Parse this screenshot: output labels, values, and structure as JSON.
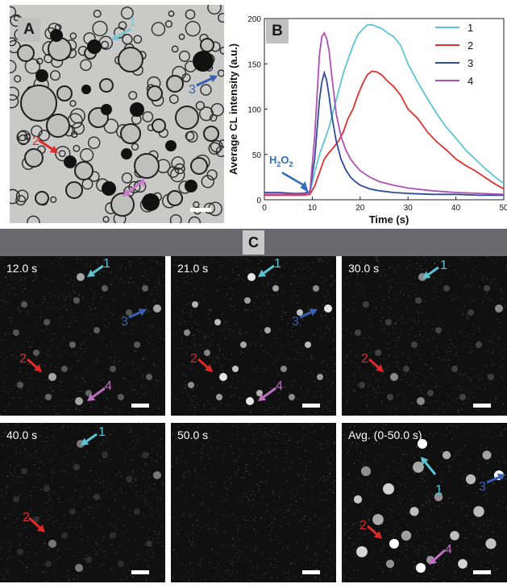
{
  "panels": {
    "a_label": "A",
    "b_label": "B",
    "c_label": "C"
  },
  "panel_a": {
    "arrows": [
      {
        "label": "1",
        "color": "#7dc6d6"
      },
      {
        "label": "2",
        "color": "#e02a2a"
      },
      {
        "label": "3",
        "color": "#3a5fb0"
      },
      {
        "label": "4",
        "color": "#c878c8"
      }
    ]
  },
  "chart_data": {
    "type": "line",
    "xlabel": "Time (s)",
    "ylabel": "Average CL intensity (a.u.)",
    "xlim": [
      0,
      50
    ],
    "ylim": [
      0,
      200
    ],
    "xticks": [
      0,
      10,
      20,
      30,
      40,
      50
    ],
    "yticks": [
      0,
      50,
      100,
      150,
      200
    ],
    "annotation": {
      "text_base": "H",
      "text_sub": "2",
      "text_mid": "O",
      "text_sub2": "2",
      "x": 9.2,
      "y": 8,
      "color": "#2f6eb5"
    },
    "legend_position": "top-right",
    "series": [
      {
        "name": "1",
        "color": "#5cc4d4",
        "x": [
          0,
          3,
          6,
          8,
          9.5,
          10.5,
          11.5,
          12.5,
          13.5,
          14.5,
          15.5,
          16.5,
          17.5,
          18.5,
          19.5,
          20.5,
          21.5,
          22.5,
          23.5,
          24.5,
          25.5,
          27,
          28.5,
          30,
          32,
          34,
          36,
          38,
          40,
          42,
          44,
          46,
          48,
          50
        ],
        "y": [
          6,
          6,
          6,
          6,
          7,
          30,
          50,
          65,
          80,
          100,
          120,
          140,
          155,
          170,
          182,
          188,
          193,
          193,
          191,
          189,
          185,
          180,
          170,
          150,
          130,
          112,
          95,
          80,
          68,
          55,
          45,
          35,
          26,
          18
        ]
      },
      {
        "name": "2",
        "color": "#e03030",
        "x": [
          0,
          3,
          6,
          8,
          9.5,
          10.5,
          11.5,
          12.5,
          13.5,
          14.5,
          15.5,
          16.5,
          17.5,
          18.5,
          19.5,
          20.5,
          21.5,
          22.5,
          23.5,
          24.5,
          25.5,
          27,
          28.5,
          30,
          32,
          34,
          36,
          38,
          40,
          42,
          44,
          46,
          48,
          50
        ],
        "y": [
          5,
          5,
          5,
          5,
          6,
          15,
          30,
          45,
          52,
          58,
          65,
          75,
          90,
          100,
          115,
          128,
          138,
          142,
          141,
          138,
          132,
          125,
          115,
          100,
          90,
          75,
          64,
          55,
          45,
          38,
          32,
          25,
          18,
          12
        ]
      },
      {
        "name": "3",
        "color": "#2e4c9a",
        "x": [
          0,
          3,
          6,
          8,
          9.5,
          10.5,
          11.5,
          12,
          12.5,
          13,
          13.5,
          14,
          15,
          16,
          17,
          18,
          19,
          20,
          22,
          24,
          27,
          30,
          35,
          40,
          45,
          50
        ],
        "y": [
          8,
          8,
          7,
          7,
          9,
          45,
          110,
          130,
          140,
          132,
          115,
          95,
          65,
          45,
          33,
          25,
          20,
          16,
          12,
          10,
          8,
          7,
          6,
          6,
          5,
          5
        ]
      },
      {
        "name": "4",
        "color": "#b050b0",
        "x": [
          0,
          3,
          6,
          8,
          9.5,
          10.5,
          11.5,
          12,
          12.5,
          13,
          13.5,
          14,
          15,
          16,
          17,
          18,
          19,
          20,
          22,
          24,
          27,
          30,
          35,
          40,
          45,
          50
        ],
        "y": [
          6,
          6,
          6,
          6,
          8,
          70,
          160,
          180,
          184,
          178,
          165,
          140,
          95,
          70,
          55,
          45,
          38,
          32,
          25,
          20,
          16,
          13,
          10,
          8,
          7,
          6
        ]
      }
    ]
  },
  "frames": [
    {
      "time": "12.0 s"
    },
    {
      "time": "21.0 s"
    },
    {
      "time": "30.0 s"
    },
    {
      "time": "40.0 s"
    },
    {
      "time": "50.0 s"
    },
    {
      "time": "Avg. (0-50.0 s)"
    }
  ],
  "frame_arrows": {
    "one": {
      "label": "1",
      "color": "#5cc4d4"
    },
    "two": {
      "label": "2",
      "color": "#e02a2a"
    },
    "three": {
      "label": "3",
      "color": "#3a5fb0"
    },
    "four": {
      "label": "4",
      "color": "#c070c0"
    }
  }
}
